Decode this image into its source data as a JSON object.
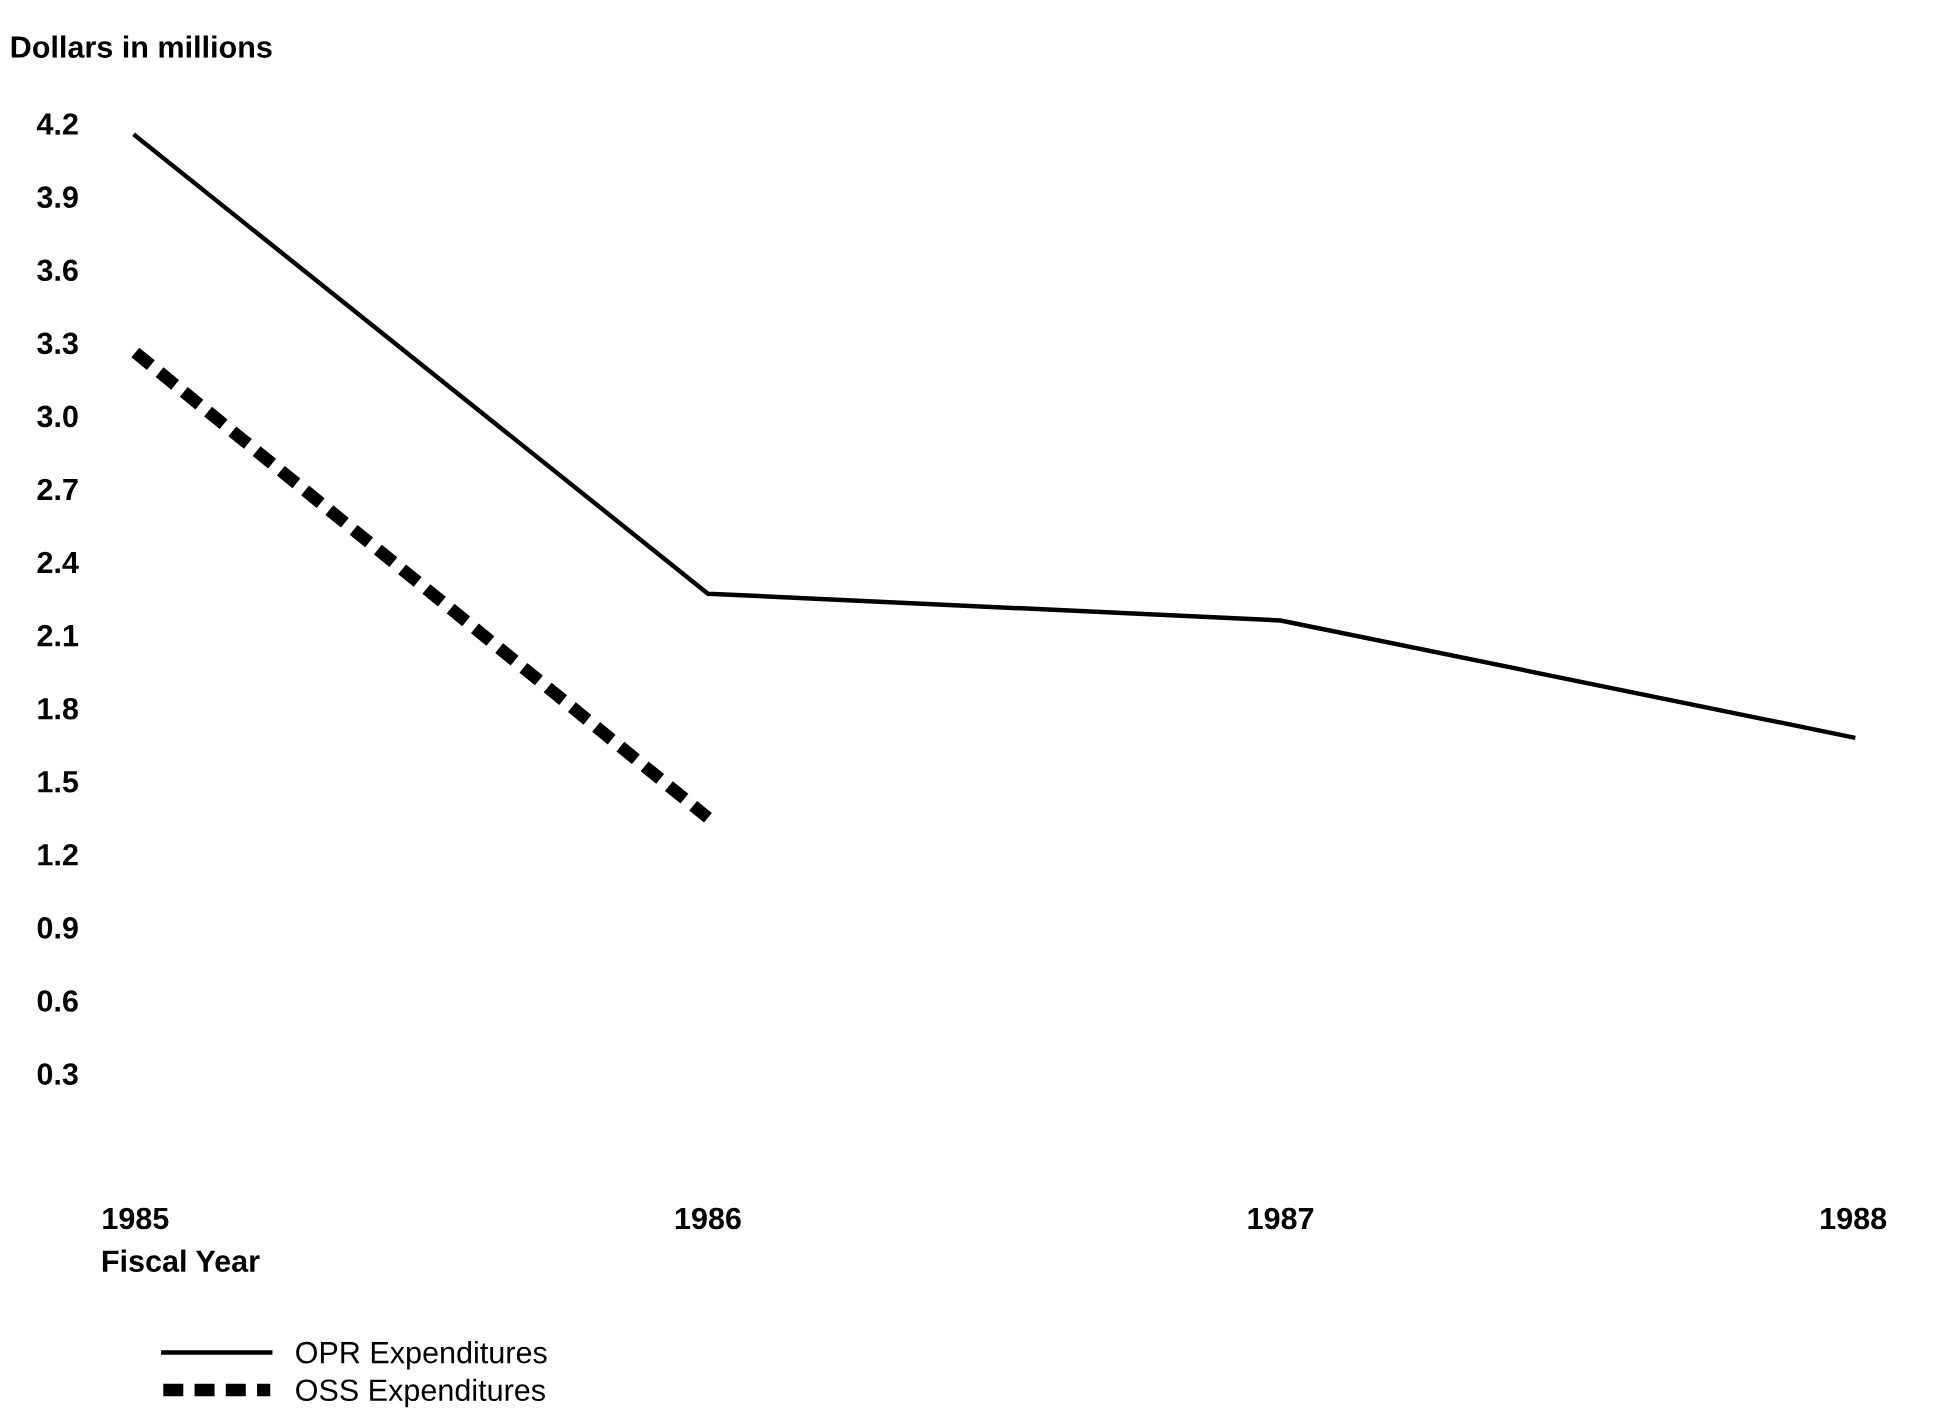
{
  "chart_data": {
    "type": "line",
    "ylabel": "Dollars in millions",
    "xlabel": "Fiscal Year",
    "categories": [
      "1985",
      "1986",
      "1987",
      "1988"
    ],
    "series": [
      {
        "name": "OPR Expenditures",
        "color": "#000000",
        "line_style": "solid",
        "values": [
          4.15,
          2.27,
          2.16,
          1.68
        ]
      },
      {
        "name": "OSS Expenditures",
        "color": "#000000",
        "line_style": "dashed",
        "values": [
          3.26,
          1.35,
          null,
          null
        ]
      }
    ],
    "ylim": [
      0.3,
      4.2
    ],
    "yticks": [
      0.3,
      0.6,
      0.9,
      1.2,
      1.5,
      1.8,
      2.1,
      2.4,
      2.7,
      {
        "value": 3,
        "label": "3.0"
      },
      3.3,
      3.6,
      3.9,
      4.2
    ],
    "grid": false,
    "legend": "bottom left",
    "marker": "none"
  }
}
